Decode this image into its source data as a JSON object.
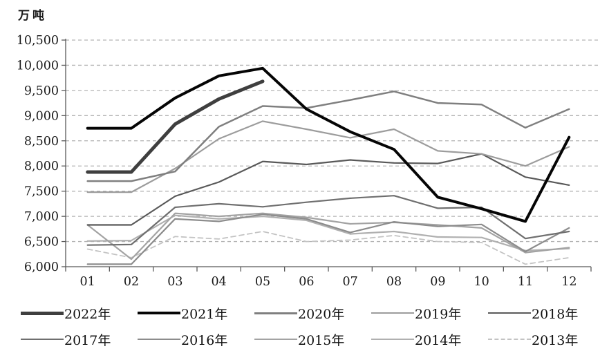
{
  "unit_label": "万吨",
  "axis": {
    "y_tick_labels": [
      "10,500",
      "10,000",
      "9,500",
      "9,000",
      "8,500",
      "8,000",
      "7,500",
      "7,000",
      "6,500",
      "6,000"
    ],
    "x_tick_labels": [
      "01",
      "02",
      "03",
      "04",
      "05",
      "06",
      "07",
      "08",
      "09",
      "10",
      "11",
      "12"
    ]
  },
  "colors": {
    "grid": "#b3b3b3",
    "axis": "#595959",
    "text": "#1a1a1a"
  },
  "chart_data": {
    "type": "line",
    "title": "",
    "xlabel": "",
    "ylabel": "万吨",
    "ylim": [
      6000,
      10500
    ],
    "y_step": 500,
    "grid": "dashed-horizontal",
    "legend_position": "bottom",
    "categories": [
      "01",
      "02",
      "03",
      "04",
      "05",
      "06",
      "07",
      "08",
      "09",
      "10",
      "11",
      "12"
    ],
    "series": [
      {
        "name": "2022年",
        "color": "#3f3f3f",
        "width": 5,
        "dash": "",
        "values": [
          7880,
          7880,
          8830,
          9330,
          9680
        ]
      },
      {
        "name": "2021年",
        "color": "#050505",
        "width": 4,
        "dash": "",
        "values": [
          8750,
          8750,
          9350,
          9790,
          9940,
          9130,
          8680,
          8330,
          7380,
          7150,
          6900,
          8570
        ]
      },
      {
        "name": "2020年",
        "color": "#7f7f7f",
        "width": 2.5,
        "dash": "",
        "values": [
          7700,
          7700,
          7890,
          8780,
          9190,
          9150,
          9310,
          9480,
          9250,
          9220,
          8760,
          9130
        ]
      },
      {
        "name": "2019年",
        "color": "#9c9c9c",
        "width": 2.2,
        "dash": "",
        "values": [
          7480,
          7480,
          7950,
          8540,
          8890,
          8730,
          8560,
          8730,
          8300,
          8240,
          8000,
          8380
        ]
      },
      {
        "name": "2018年",
        "color": "#595959",
        "width": 2.2,
        "dash": "",
        "values": [
          6830,
          6830,
          7400,
          7680,
          8090,
          8030,
          8120,
          8060,
          8050,
          8240,
          7780,
          7620
        ]
      },
      {
        "name": "2017年",
        "color": "#6f6f6f",
        "width": 2.2,
        "dash": "",
        "values": [
          6430,
          6440,
          7180,
          7250,
          7190,
          7280,
          7360,
          7410,
          7160,
          7180,
          6560,
          6700
        ]
      },
      {
        "name": "2016年",
        "color": "#8c8c8c",
        "width": 2.2,
        "dash": "",
        "values": [
          6050,
          6050,
          6950,
          6900,
          7040,
          6950,
          6680,
          6890,
          6800,
          6840,
          6300,
          6770
        ]
      },
      {
        "name": "2015年",
        "color": "#a3a3a3",
        "width": 2.2,
        "dash": "",
        "values": [
          6830,
          6150,
          7060,
          7000,
          7060,
          6980,
          6850,
          6880,
          6830,
          6770,
          6280,
          6380
        ]
      },
      {
        "name": "2014年",
        "color": "#b0b0b0",
        "width": 2.2,
        "dash": "",
        "values": [
          6510,
          6520,
          7020,
          6950,
          7000,
          6920,
          6650,
          6700,
          6590,
          6580,
          6320,
          6360
        ]
      },
      {
        "name": "2013年",
        "color": "#c3c3c3",
        "width": 1.8,
        "dash": "7 5",
        "values": [
          6350,
          6180,
          6600,
          6550,
          6700,
          6500,
          6530,
          6620,
          6500,
          6480,
          6050,
          6180
        ]
      }
    ]
  }
}
